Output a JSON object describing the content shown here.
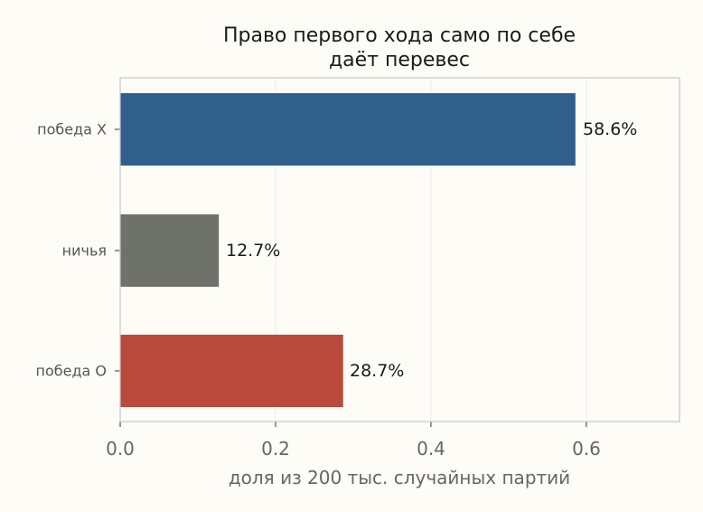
{
  "chart_data": {
    "type": "bar",
    "orientation": "horizontal",
    "title_lines": [
      "Право первого хода само по себе",
      "даёт перевес"
    ],
    "xlabel": "доля из 200 тыс. случайных партий",
    "ylabel": "",
    "xlim": [
      0,
      0.72
    ],
    "xticks": [
      0.0,
      0.2,
      0.4,
      0.6
    ],
    "xtick_labels": [
      "0.0",
      "0.2",
      "0.4",
      "0.6"
    ],
    "grid": "vertical",
    "categories": [
      "победа X",
      "ничья",
      "победа O"
    ],
    "values": [
      0.586,
      0.127,
      0.287
    ],
    "value_labels": [
      "58.6%",
      "12.7%",
      "28.7%"
    ],
    "colors": [
      "#2f5f8a",
      "#6f716b",
      "#b8493b"
    ]
  }
}
